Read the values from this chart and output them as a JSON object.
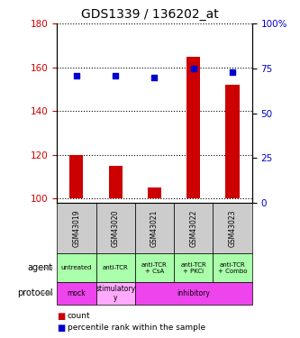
{
  "title": "GDS1339 / 136202_at",
  "samples": [
    "GSM43019",
    "GSM43020",
    "GSM43021",
    "GSM43022",
    "GSM43023"
  ],
  "bar_bottoms": [
    100,
    100,
    100,
    100,
    100
  ],
  "bar_tops": [
    120,
    115,
    105,
    165,
    152
  ],
  "percentile_ranks": [
    71,
    71,
    70,
    75,
    73
  ],
  "ylim_left": [
    98,
    180
  ],
  "ylim_right": [
    0,
    100
  ],
  "yticks_left": [
    100,
    120,
    140,
    160,
    180
  ],
  "yticks_right": [
    0,
    25,
    50,
    75,
    100
  ],
  "bar_color": "#cc0000",
  "dot_color": "#0000cc",
  "agent_labels": [
    "untreated",
    "anti-TCR",
    "anti-TCR\n+ CsA",
    "anti-TCR\n+ PKCi",
    "anti-TCR\n+ Combo"
  ],
  "protocol_spans": [
    {
      "start": 0,
      "end": 1,
      "label": "mock",
      "color": "#ee44ee"
    },
    {
      "start": 1,
      "end": 2,
      "label": "stimulatory\ny",
      "color": "#ffaaff"
    },
    {
      "start": 2,
      "end": 5,
      "label": "inhibitory",
      "color": "#ee44ee"
    }
  ],
  "agent_bg": "#aaffaa",
  "sample_label_bg": "#cccccc",
  "legend_count_color": "#cc0000",
  "legend_pct_color": "#0000cc"
}
